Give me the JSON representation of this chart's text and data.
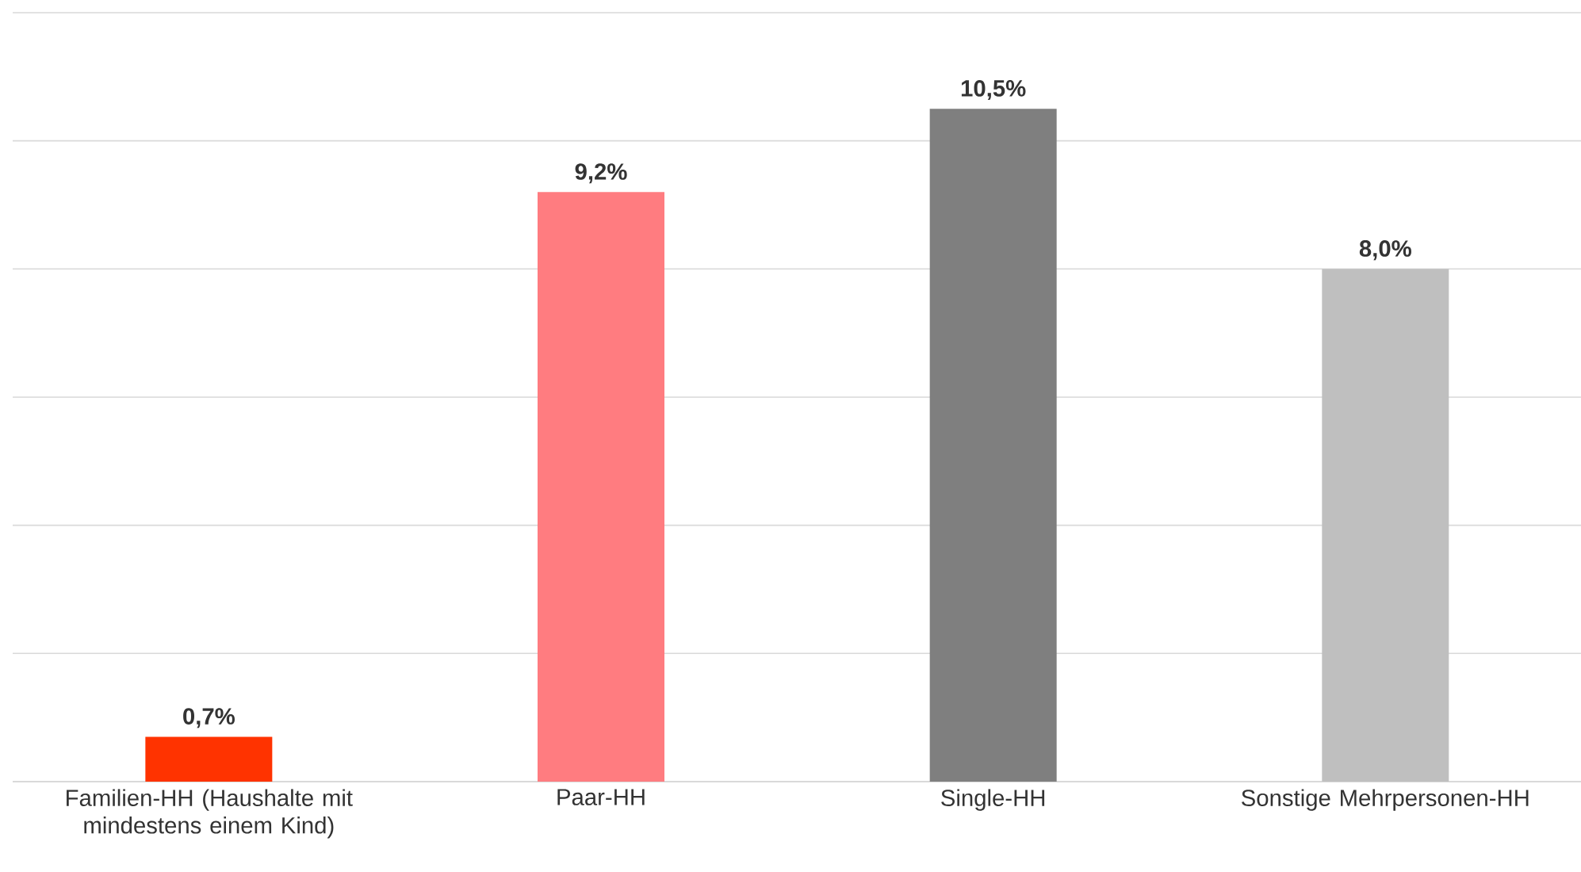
{
  "chart_data": {
    "type": "bar",
    "categories": [
      "Familien-HH (Haushalte mit mindestens einem Kind)",
      "Paar-HH",
      "Single-HH",
      "Sonstige Mehrpersonen-HH"
    ],
    "values": [
      0.7,
      9.2,
      10.5,
      8.0
    ],
    "value_labels": [
      "0,7%",
      "9,2%",
      "10,5%",
      "8,0%"
    ],
    "colors": [
      "#ff3300",
      "#ff7c80",
      "#7f7f7f",
      "#bfbfbf"
    ],
    "ylim": [
      0,
      12
    ],
    "yticks": [
      {
        "value": 0,
        "label": null
      },
      {
        "value": 2,
        "label": null
      },
      {
        "value": 4,
        "label": null
      },
      {
        "value": 6,
        "label": null
      },
      {
        "value": 8,
        "label": null
      },
      {
        "value": 10,
        "label": null
      },
      {
        "value": 12,
        "label": null
      }
    ],
    "grid": "y",
    "tick_labels": "x"
  }
}
